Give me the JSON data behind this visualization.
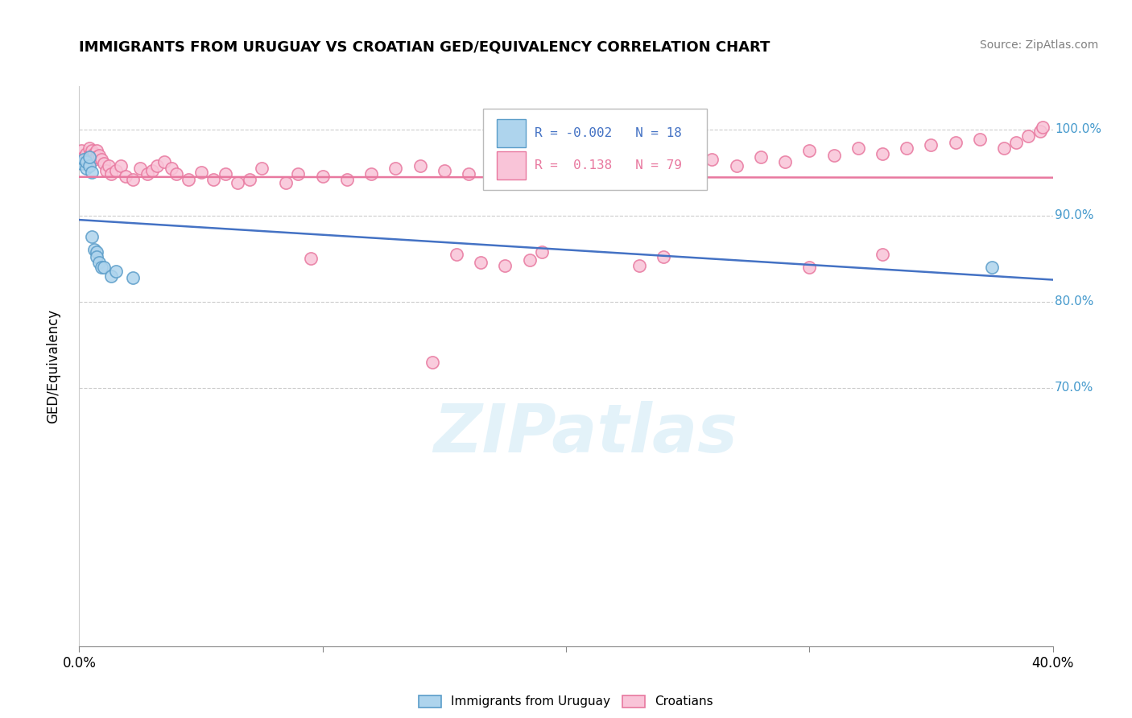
{
  "title": "IMMIGRANTS FROM URUGUAY VS CROATIAN GED/EQUIVALENCY CORRELATION CHART",
  "source": "Source: ZipAtlas.com",
  "ylabel": "GED/Equivalency",
  "xlim": [
    0.0,
    0.4
  ],
  "ylim": [
    0.4,
    1.05
  ],
  "xtick_positions": [
    0.0,
    0.1,
    0.2,
    0.3,
    0.4
  ],
  "xtick_labels_edge": [
    "0.0%",
    "",
    "",
    "",
    "40.0%"
  ],
  "ytick_positions": [
    0.7,
    0.8,
    0.9,
    1.0
  ],
  "ytick_labels": [
    "70.0%",
    "80.0%",
    "90.0%",
    "100.0%"
  ],
  "legend_R_uruguay": "-0.002",
  "legend_N_uruguay": "18",
  "legend_R_croatian": "0.138",
  "legend_N_croatian": "79",
  "legend_label_uruguay": "Immigrants from Uruguay",
  "legend_label_croatian": "Croatians",
  "watermark": "ZIPatlas",
  "blue_color": "#aed4ed",
  "blue_edge_color": "#5b9dc9",
  "pink_color": "#f9c4d8",
  "pink_edge_color": "#e8789f",
  "blue_line_color": "#4472c4",
  "pink_line_color": "#e8789f",
  "blue_scatter_x": [
    0.001,
    0.002,
    0.003,
    0.003,
    0.004,
    0.004,
    0.005,
    0.005,
    0.006,
    0.007,
    0.007,
    0.008,
    0.009,
    0.01,
    0.013,
    0.015,
    0.022,
    0.375
  ],
  "blue_scatter_y": [
    0.96,
    0.965,
    0.955,
    0.962,
    0.958,
    0.968,
    0.95,
    0.875,
    0.86,
    0.858,
    0.852,
    0.845,
    0.84,
    0.84,
    0.83,
    0.835,
    0.828,
    0.84
  ],
  "pink_scatter_x": [
    0.001,
    0.002,
    0.003,
    0.003,
    0.004,
    0.004,
    0.005,
    0.005,
    0.006,
    0.006,
    0.007,
    0.007,
    0.008,
    0.009,
    0.01,
    0.011,
    0.012,
    0.013,
    0.015,
    0.017,
    0.019,
    0.022,
    0.025,
    0.028,
    0.03,
    0.032,
    0.035,
    0.038,
    0.04,
    0.045,
    0.05,
    0.055,
    0.06,
    0.065,
    0.07,
    0.075,
    0.085,
    0.09,
    0.1,
    0.11,
    0.12,
    0.13,
    0.14,
    0.15,
    0.155,
    0.16,
    0.165,
    0.17,
    0.175,
    0.18,
    0.185,
    0.19,
    0.2,
    0.21,
    0.22,
    0.23,
    0.24,
    0.25,
    0.26,
    0.27,
    0.28,
    0.29,
    0.3,
    0.31,
    0.32,
    0.33,
    0.34,
    0.35,
    0.36,
    0.37,
    0.38,
    0.385,
    0.39,
    0.395,
    0.396,
    0.145,
    0.095,
    0.3,
    0.33
  ],
  "pink_scatter_y": [
    0.975,
    0.968,
    0.972,
    0.965,
    0.978,
    0.97,
    0.975,
    0.968,
    0.972,
    0.965,
    0.975,
    0.968,
    0.97,
    0.965,
    0.96,
    0.952,
    0.958,
    0.948,
    0.952,
    0.958,
    0.945,
    0.942,
    0.955,
    0.948,
    0.952,
    0.958,
    0.962,
    0.955,
    0.948,
    0.942,
    0.95,
    0.942,
    0.948,
    0.938,
    0.942,
    0.955,
    0.938,
    0.948,
    0.945,
    0.942,
    0.948,
    0.955,
    0.958,
    0.952,
    0.855,
    0.948,
    0.845,
    0.955,
    0.842,
    0.952,
    0.848,
    0.858,
    0.948,
    0.955,
    0.958,
    0.842,
    0.852,
    0.955,
    0.965,
    0.958,
    0.968,
    0.962,
    0.975,
    0.97,
    0.978,
    0.972,
    0.978,
    0.982,
    0.985,
    0.988,
    0.978,
    0.985,
    0.992,
    0.998,
    1.002,
    0.73,
    0.85,
    0.84,
    0.855
  ]
}
